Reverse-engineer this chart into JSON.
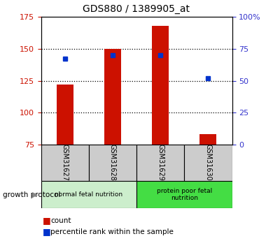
{
  "title": "GDS880 / 1389905_at",
  "samples": [
    "GSM31627",
    "GSM31628",
    "GSM31629",
    "GSM31630"
  ],
  "counts": [
    122,
    150,
    168,
    83
  ],
  "percentile_ranks": [
    67,
    70,
    70,
    52
  ],
  "ylim_left": [
    75,
    175
  ],
  "ylim_right": [
    0,
    100
  ],
  "yticks_left": [
    75,
    100,
    125,
    150,
    175
  ],
  "yticks_right": [
    0,
    25,
    50,
    75,
    100
  ],
  "ytick_labels_right": [
    "0",
    "25",
    "50",
    "75",
    "100%"
  ],
  "bar_color": "#CC1100",
  "marker_color": "#0033CC",
  "bar_width": 0.35,
  "groups": [
    {
      "label": "normal fetal nutrition",
      "indices": [
        0,
        1
      ],
      "color": "#cceecc"
    },
    {
      "label": "protein poor fetal\nnutrition",
      "indices": [
        2,
        3
      ],
      "color": "#44dd44"
    }
  ],
  "group_label": "growth protocol",
  "legend_count_label": "count",
  "legend_percentile_label": "percentile rank within the sample",
  "tick_label_color_left": "#CC1100",
  "tick_label_color_right": "#3333CC",
  "background_sample_row": "#cccccc",
  "gridline_yticks": [
    100,
    125,
    150
  ]
}
